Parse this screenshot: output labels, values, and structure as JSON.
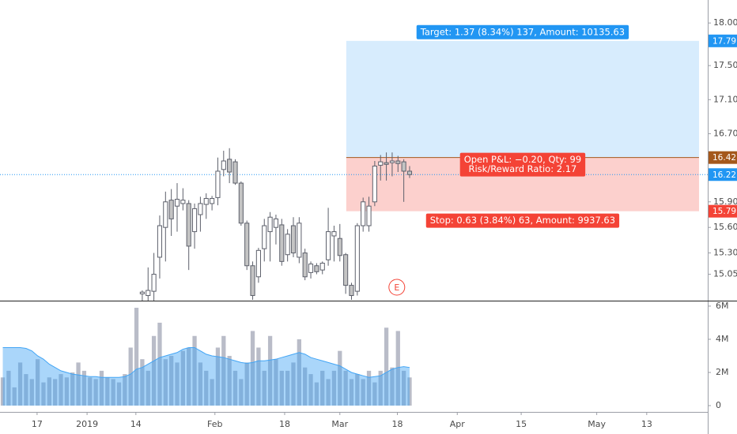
{
  "chart_data": [
    {
      "type": "candlestick",
      "categories": [
        null,
        null,
        null,
        null,
        null,
        null,
        null,
        null,
        null,
        null,
        null,
        null,
        null,
        null,
        null,
        null,
        null,
        null,
        null,
        null,
        null,
        null,
        null,
        null,
        null,
        null,
        null,
        null,
        null,
        null,
        null,
        null,
        null,
        null,
        null,
        null,
        null,
        null,
        null,
        null,
        null,
        null,
        null,
        null,
        null,
        null,
        null,
        null,
        null,
        null,
        null,
        null,
        null,
        null,
        null,
        null,
        null,
        null,
        null,
        null,
        null,
        null,
        null,
        null,
        null,
        null,
        null,
        null,
        null,
        null,
        null
      ],
      "open": [
        null,
        null,
        null,
        null,
        null,
        null,
        null,
        null,
        null,
        null,
        null,
        null,
        null,
        null,
        null,
        null,
        null,
        null,
        null,
        null,
        null,
        null,
        null,
        null,
        14.82,
        14.8,
        14.85,
        15.25,
        15.6,
        15.92,
        15.85,
        15.88,
        15.88,
        15.55,
        15.75,
        15.87,
        15.88,
        15.95,
        16.28,
        16.4,
        16.37,
        16.12,
        15.65,
        15.15,
        15.02,
        15.35,
        15.55,
        15.6,
        15.63,
        15.28,
        15.62,
        15.25,
        15.3,
        15.07,
        15.15,
        15.1,
        15.22,
        15.5,
        15.47,
        15.28,
        14.92,
        14.85,
        15.62,
        15.62,
        15.9,
        16.33,
        16.36,
        16.36,
        16.38,
        16.37,
        16.26
      ],
      "high": [
        null,
        null,
        null,
        null,
        null,
        null,
        null,
        null,
        null,
        null,
        null,
        null,
        null,
        null,
        null,
        null,
        null,
        null,
        null,
        null,
        null,
        null,
        null,
        null,
        14.86,
        15.13,
        15.3,
        15.74,
        16.02,
        16.05,
        16.12,
        16.06,
        15.92,
        15.88,
        15.96,
        16.0,
        15.97,
        16.42,
        16.5,
        16.53,
        16.4,
        16.14,
        15.68,
        15.2,
        15.36,
        15.7,
        15.78,
        15.75,
        15.7,
        15.58,
        15.72,
        15.72,
        15.35,
        15.2,
        15.18,
        15.2,
        15.83,
        15.62,
        15.64,
        15.3,
        14.95,
        15.65,
        15.95,
        15.96,
        16.38,
        16.45,
        16.48,
        16.48,
        16.44,
        16.4,
        16.32
      ],
      "low": [
        null,
        null,
        null,
        null,
        null,
        null,
        null,
        null,
        null,
        null,
        null,
        null,
        null,
        null,
        null,
        null,
        null,
        null,
        null,
        null,
        null,
        null,
        null,
        null,
        14.7,
        14.7,
        14.72,
        15.0,
        15.2,
        15.5,
        15.55,
        15.8,
        15.1,
        15.35,
        15.55,
        15.7,
        15.8,
        15.86,
        16.2,
        16.12,
        16.1,
        15.62,
        15.1,
        14.75,
        14.95,
        15.2,
        15.2,
        15.4,
        15.15,
        15.2,
        15.25,
        15.18,
        14.98,
        15.0,
        15.05,
        15.05,
        15.15,
        15.2,
        15.2,
        14.82,
        14.75,
        14.8,
        15.55,
        15.55,
        15.85,
        16.15,
        16.15,
        16.2,
        16.25,
        15.9,
        16.18
      ],
      "close": [
        null,
        null,
        null,
        null,
        null,
        null,
        null,
        null,
        null,
        null,
        null,
        null,
        null,
        null,
        null,
        null,
        null,
        null,
        null,
        null,
        null,
        null,
        null,
        null,
        14.84,
        14.86,
        15.05,
        15.62,
        15.9,
        15.7,
        15.93,
        15.92,
        15.38,
        15.82,
        15.88,
        15.94,
        15.94,
        16.26,
        16.38,
        16.25,
        16.12,
        15.65,
        15.15,
        14.8,
        15.33,
        15.62,
        15.72,
        15.7,
        15.2,
        15.52,
        15.3,
        15.65,
        15.02,
        15.17,
        15.08,
        15.18,
        15.55,
        15.55,
        15.27,
        14.92,
        14.8,
        15.62,
        15.9,
        15.85,
        16.32,
        16.37,
        16.34,
        16.38,
        16.35,
        16.26,
        16.22
      ],
      "up_color": "#ffffff",
      "down_color": "#c4c4c4",
      "border_color": "#5d606b",
      "last_price_color": "#2196f3",
      "xlim": [
        -0.48,
        121.3
      ],
      "ylim": [
        14.74,
        18.27
      ],
      "yticks": [
        {
          "value": 18,
          "label": "18.00"
        },
        {
          "value": 17.5,
          "label": "17.50"
        },
        {
          "value": 17.1,
          "label": "17.10"
        },
        {
          "value": 16.7,
          "label": "16.70"
        },
        {
          "value": 15.9,
          "label": "15.90"
        },
        {
          "value": 15.6,
          "label": "15.60"
        },
        {
          "value": 15.3,
          "label": "15.30"
        },
        15.05
      ],
      "position": {
        "entry": 16.42,
        "target": 17.79,
        "stop": 15.79,
        "x_range": [
          59.1,
          119.8
        ],
        "profit_color": "#2196f3",
        "loss_color": "#f44336",
        "entry_color": "#a4581c",
        "target_label": "Target: 1.37 (8.34%) 137, Amount: 10135.63",
        "pnl_label": "Open P&L: −0.20, Qty: 99",
        "ratio_label": "Risk/Reward Ratio: 2.17",
        "stop_label": "Stop: 0.63 (3.84%) 63, Amount: 9937.63"
      },
      "events": [
        {
          "label": "E",
          "x": 67.8,
          "color": "#f44336"
        }
      ]
    },
    {
      "type": "volume",
      "values": [
        1.7,
        2.1,
        1.1,
        2.6,
        1.9,
        1.6,
        2.8,
        1.4,
        1.7,
        1.6,
        1.9,
        1.7,
        2.0,
        2.6,
        2.1,
        1.7,
        1.6,
        2.1,
        1.7,
        1.6,
        1.4,
        1.9,
        3.5,
        5.9,
        2.8,
        2.1,
        4.2,
        5.0,
        2.8,
        3.0,
        2.6,
        3.3,
        3.5,
        4.2,
        2.6,
        2.1,
        1.6,
        3.5,
        4.2,
        3.0,
        2.1,
        1.6,
        2.6,
        4.5,
        3.5,
        2.1,
        4.2,
        2.8,
        2.1,
        2.1,
        2.6,
        4.0,
        2.3,
        1.9,
        1.4,
        2.1,
        1.6,
        2.1,
        3.3,
        2.1,
        1.6,
        1.9,
        1.6,
        2.1,
        1.4,
        2.1,
        4.7,
        2.3,
        4.5,
        2.1,
        1.7
      ],
      "color": "#b9bcc8",
      "ma": [
        3.5,
        3.5,
        3.5,
        3.5,
        3.45,
        3.3,
        3.0,
        2.8,
        2.5,
        2.3,
        2.1,
        2.0,
        1.9,
        1.85,
        1.8,
        1.75,
        1.75,
        1.7,
        1.7,
        1.7,
        1.7,
        1.75,
        1.9,
        2.2,
        2.3,
        2.5,
        2.7,
        2.9,
        3.0,
        3.1,
        3.2,
        3.4,
        3.5,
        3.5,
        3.3,
        3.1,
        3.0,
        2.95,
        2.9,
        2.8,
        2.7,
        2.6,
        2.55,
        2.6,
        2.7,
        2.7,
        2.75,
        2.8,
        2.9,
        3.0,
        3.1,
        3.2,
        3.1,
        2.9,
        2.8,
        2.7,
        2.6,
        2.5,
        2.4,
        2.2,
        2.0,
        1.9,
        1.8,
        1.7,
        1.75,
        1.8,
        2.0,
        2.2,
        2.3,
        2.35,
        2.3
      ],
      "ma_color": "#42a5f5",
      "xlim": [
        -0.48,
        121.3
      ],
      "ylim": [
        -0.38,
        6.33
      ],
      "yticks": [
        {
          "value": 6,
          "label": "6M"
        },
        {
          "value": 4,
          "label": "4M"
        },
        {
          "value": 2,
          "label": "2M"
        },
        0
      ],
      "xticks": [
        {
          "value": 5.9,
          "label": "17"
        },
        {
          "value": 14.5,
          "label": "2019"
        },
        {
          "value": 22.9,
          "label": "14"
        },
        {
          "value": 36.5,
          "label": "Feb"
        },
        {
          "value": 48.5,
          "label": "18"
        },
        {
          "value": 58.0,
          "label": "Mar"
        },
        {
          "value": 67.9,
          "label": "18"
        },
        {
          "value": 78.2,
          "label": "Apr"
        },
        {
          "value": 89.2,
          "label": "15"
        },
        {
          "value": 102.2,
          "label": "May"
        },
        {
          "value": 110.8,
          "label": "13"
        }
      ]
    }
  ]
}
